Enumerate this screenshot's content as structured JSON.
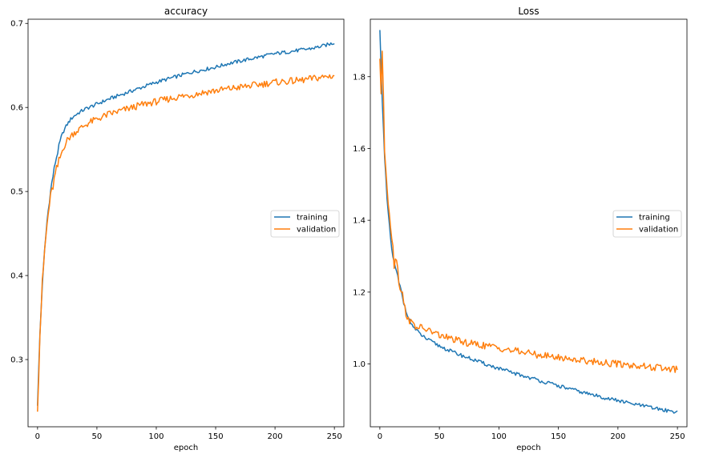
{
  "chart_data": [
    {
      "type": "line",
      "title": "accuracy",
      "xlabel": "epoch",
      "ylabel": "",
      "xlim": [
        -8,
        258
      ],
      "ylim": [
        0.22,
        0.705
      ],
      "xticks": [
        0,
        50,
        100,
        150,
        200,
        250
      ],
      "yticks": [
        0.3,
        0.4,
        0.5,
        0.6,
        0.7
      ],
      "ytick_decimals": 1,
      "legend": "center-right",
      "grid": false,
      "series": [
        {
          "name": "training",
          "color": "#1f77b4",
          "x": [
            0,
            2,
            4,
            6,
            8,
            10,
            12,
            15,
            18,
            20,
            22,
            25,
            28,
            30,
            35,
            40,
            45,
            50,
            55,
            60,
            70,
            80,
            90,
            100,
            110,
            120,
            130,
            140,
            150,
            160,
            170,
            180,
            190,
            200,
            210,
            220,
            230,
            240,
            245,
            250
          ],
          "y": [
            0.245,
            0.33,
            0.39,
            0.43,
            0.465,
            0.49,
            0.51,
            0.535,
            0.553,
            0.565,
            0.572,
            0.58,
            0.586,
            0.589,
            0.594,
            0.598,
            0.601,
            0.604,
            0.607,
            0.61,
            0.615,
            0.62,
            0.625,
            0.63,
            0.634,
            0.638,
            0.642,
            0.645,
            0.648,
            0.652,
            0.655,
            0.658,
            0.661,
            0.664,
            0.666,
            0.668,
            0.67,
            0.673,
            0.675,
            0.677
          ]
        },
        {
          "name": "validation",
          "color": "#ff7f0e",
          "x": [
            0,
            2,
            4,
            6,
            8,
            10,
            12,
            15,
            18,
            20,
            22,
            25,
            28,
            30,
            35,
            40,
            45,
            50,
            55,
            60,
            70,
            80,
            90,
            100,
            110,
            120,
            130,
            140,
            150,
            160,
            170,
            180,
            190,
            200,
            210,
            220,
            230,
            240,
            245,
            250
          ],
          "y": [
            0.238,
            0.33,
            0.39,
            0.43,
            0.46,
            0.485,
            0.5,
            0.52,
            0.535,
            0.545,
            0.553,
            0.561,
            0.566,
            0.569,
            0.574,
            0.579,
            0.583,
            0.586,
            0.589,
            0.592,
            0.596,
            0.6,
            0.604,
            0.607,
            0.61,
            0.613,
            0.615,
            0.618,
            0.62,
            0.622,
            0.624,
            0.626,
            0.628,
            0.63,
            0.631,
            0.632,
            0.634,
            0.636,
            0.637,
            0.638
          ]
        }
      ]
    },
    {
      "type": "line",
      "title": "Loss",
      "xlabel": "epoch",
      "ylabel": "",
      "xlim": [
        -8,
        258
      ],
      "ylim": [
        0.825,
        1.96
      ],
      "xticks": [
        0,
        50,
        100,
        150,
        200,
        250
      ],
      "yticks": [
        1.0,
        1.2,
        1.4,
        1.6,
        1.8
      ],
      "ytick_decimals": 1,
      "legend": "center-right",
      "grid": false,
      "series": [
        {
          "name": "training",
          "color": "#1f77b4",
          "x": [
            0,
            2,
            4,
            6,
            8,
            10,
            12,
            15,
            18,
            20,
            22,
            25,
            28,
            30,
            35,
            40,
            50,
            60,
            70,
            80,
            90,
            100,
            110,
            120,
            130,
            140,
            150,
            160,
            170,
            180,
            190,
            200,
            210,
            220,
            230,
            240,
            250
          ],
          "y": [
            1.93,
            1.74,
            1.57,
            1.46,
            1.38,
            1.32,
            1.28,
            1.24,
            1.2,
            1.17,
            1.15,
            1.12,
            1.105,
            1.095,
            1.08,
            1.068,
            1.05,
            1.035,
            1.022,
            1.01,
            0.998,
            0.987,
            0.977,
            0.967,
            0.958,
            0.948,
            0.939,
            0.93,
            0.921,
            0.913,
            0.905,
            0.898,
            0.89,
            0.884,
            0.877,
            0.871,
            0.866
          ]
        },
        {
          "name": "validation",
          "color": "#ff7f0e",
          "x": [
            0,
            1,
            2,
            3,
            4,
            6,
            8,
            10,
            12,
            14,
            16,
            18,
            20,
            22,
            25,
            28,
            30,
            35,
            40,
            50,
            60,
            70,
            80,
            90,
            100,
            110,
            120,
            130,
            140,
            150,
            160,
            170,
            180,
            190,
            200,
            210,
            220,
            230,
            240,
            250
          ],
          "y": [
            1.85,
            1.76,
            1.87,
            1.74,
            1.6,
            1.5,
            1.42,
            1.36,
            1.28,
            1.3,
            1.23,
            1.21,
            1.17,
            1.14,
            1.12,
            1.11,
            1.105,
            1.1,
            1.095,
            1.08,
            1.07,
            1.06,
            1.055,
            1.05,
            1.045,
            1.038,
            1.033,
            1.027,
            1.022,
            1.018,
            1.014,
            1.01,
            1.007,
            1.003,
            1.0,
            0.997,
            0.994,
            0.99,
            0.987,
            0.984
          ]
        }
      ]
    }
  ]
}
